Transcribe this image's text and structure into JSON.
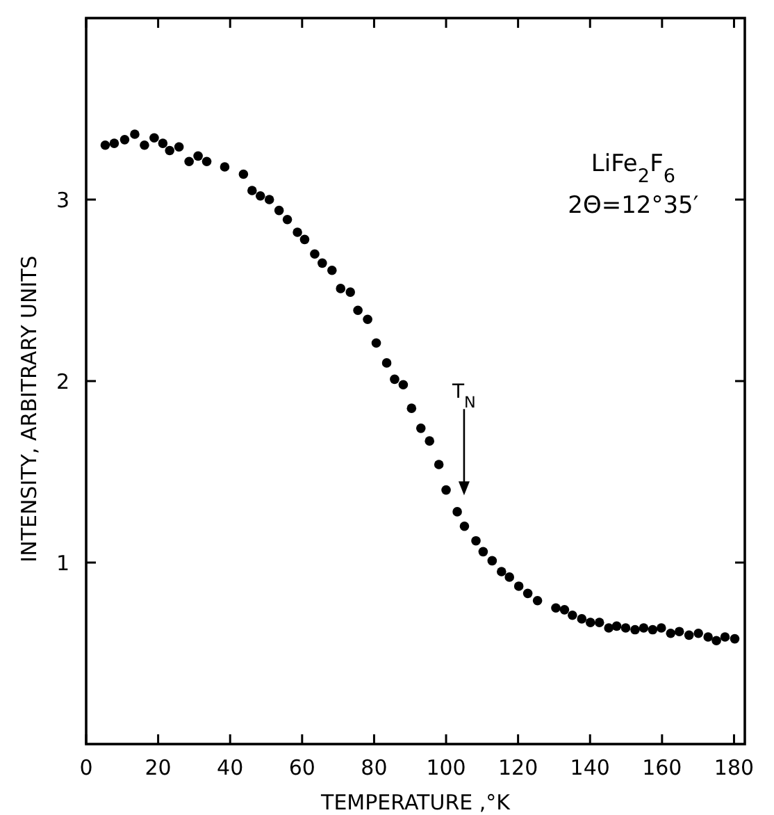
{
  "chart_data": {
    "type": "scatter",
    "xlabel": "TEMPERATURE ,°K",
    "ylabel": "INTENSITY, ARBITRARY UNITS",
    "marker": "circle",
    "grid": false,
    "xlim": [
      0,
      183
    ],
    "ylim": [
      0,
      4
    ],
    "xticks": [
      0,
      20,
      40,
      60,
      80,
      100,
      120,
      140,
      160,
      180
    ],
    "yticks": [
      1,
      2,
      3
    ],
    "annotations": [
      "LiFe$_{2}$F$_{6}$",
      "2Θ=12°35′",
      "T$_{N}$"
    ],
    "series": [
      {
        "color": "#000000",
        "x": [
          5.3,
          7.8,
          10.7,
          13.5,
          16.2,
          18.9,
          21.3,
          23.2,
          25.8,
          28.6,
          31.1,
          33.5,
          38.5,
          43.7,
          46.1,
          48.4,
          50.9,
          53.6,
          55.9,
          58.7,
          60.7,
          63.5,
          65.6,
          68.3,
          70.7,
          73.4,
          75.5,
          78.2,
          80.6,
          83.5,
          85.7,
          88.1,
          90.4,
          93.0,
          95.4,
          98.0,
          100.0,
          103.1,
          105.1,
          108.3,
          110.3,
          112.8,
          115.4,
          117.6,
          120.2,
          122.7,
          125.4,
          130.5,
          132.9,
          135.1,
          137.7,
          140.1,
          142.6,
          145.2,
          147.4,
          149.9,
          152.5,
          154.9,
          157.4,
          159.8,
          162.4,
          164.8,
          167.5,
          170.1,
          172.8,
          175.1,
          177.5,
          180.2
        ],
        "values": [
          3.3,
          3.31,
          3.33,
          3.36,
          3.3,
          3.34,
          3.31,
          3.27,
          3.29,
          3.21,
          3.24,
          3.21,
          3.18,
          3.14,
          3.05,
          3.02,
          3.0,
          2.94,
          2.89,
          2.82,
          2.78,
          2.7,
          2.65,
          2.61,
          2.51,
          2.49,
          2.39,
          2.34,
          2.21,
          2.1,
          2.01,
          1.98,
          1.85,
          1.74,
          1.67,
          1.54,
          1.4,
          1.28,
          1.2,
          1.12,
          1.06,
          1.01,
          0.95,
          0.92,
          0.87,
          0.83,
          0.79,
          0.75,
          0.74,
          0.71,
          0.69,
          0.67,
          0.67,
          0.64,
          0.65,
          0.64,
          0.63,
          0.64,
          0.63,
          0.64,
          0.61,
          0.62,
          0.6,
          0.61,
          0.59,
          0.57,
          0.59,
          0.58
        ]
      }
    ]
  }
}
